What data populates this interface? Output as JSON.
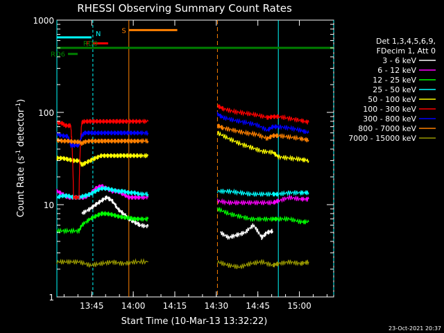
{
  "chart_data": {
    "type": "line",
    "title": "RHESSI Observing Summary Count Rates",
    "xlabel": "Start Time (10-Mar-13 13:32:22)",
    "ylabel_main": "Count Rate (s",
    "ylabel_sup1": "-1",
    "ylabel_mid": " detector",
    "ylabel_sup2": "-1",
    "ylabel_end": ")",
    "x_unit": "minutes after 13:32:22",
    "xlim": [
      0,
      100
    ],
    "ylim": [
      1,
      1000
    ],
    "yscale": "log",
    "x_ticks": [
      {
        "label": "13:45",
        "value": 12.6
      },
      {
        "label": "14:00",
        "value": 27.6
      },
      {
        "label": "14:15",
        "value": 42.6
      },
      {
        "label": "14:30",
        "value": 57.6
      },
      {
        "label": "14:45",
        "value": 72.6
      },
      {
        "label": "15:00",
        "value": 87.6
      }
    ],
    "y_ticks": [
      {
        "label": "1",
        "value": 1
      },
      {
        "label": "10",
        "value": 10
      },
      {
        "label": "100",
        "value": 100
      },
      {
        "label": "1000",
        "value": 1000
      }
    ],
    "legend_header": [
      "Det 1,3,4,5,6,9,",
      "FDecim 1, Att 0"
    ],
    "legend_position": "right",
    "timestamp": "23-Oct-2021 20:37",
    "series": [
      {
        "name": "3 - 6 keV",
        "color": "#ffffff",
        "x": [
          9,
          12,
          14,
          16,
          18,
          20,
          22,
          24,
          26,
          28,
          30,
          33
        ],
        "y": [
          8,
          9,
          10,
          11,
          12,
          11,
          9,
          8,
          7,
          6.5,
          6,
          5.8
        ]
      },
      {
        "name": "6 - 12 keV",
        "color": "#ff00ff",
        "x": [
          0,
          2,
          4,
          6,
          8,
          10,
          12,
          14,
          16,
          18,
          20,
          22,
          24,
          26,
          28,
          30,
          33
        ],
        "y": [
          14,
          13,
          12,
          12,
          12,
          12,
          13,
          15,
          16,
          15,
          14,
          14,
          13,
          12,
          12,
          12,
          12
        ]
      },
      {
        "name": "12 - 25 keV",
        "color": "#00ff00",
        "x": [
          0,
          4,
          8,
          9,
          12,
          14,
          16,
          18,
          20,
          22,
          24,
          26,
          28,
          30,
          33
        ],
        "y": [
          5.2,
          5.2,
          5.2,
          6,
          7,
          7.5,
          8,
          8,
          7.8,
          7.5,
          7.3,
          7.2,
          7,
          7,
          7
        ]
      },
      {
        "name": "25 - 50 keV",
        "color": "#00ffff",
        "x": [
          0,
          2,
          4,
          6,
          8,
          10,
          12,
          14,
          16,
          18,
          20,
          22,
          24,
          26,
          28,
          30,
          33
        ],
        "y": [
          12,
          12.5,
          12.5,
          12,
          12,
          12.5,
          13,
          14,
          15,
          15,
          14.5,
          14,
          14,
          13.5,
          13.5,
          13,
          13
        ]
      },
      {
        "name": "50 - 100 keV",
        "color": "#ffff00",
        "x": [
          0,
          2,
          4,
          6,
          8,
          9,
          10,
          12,
          14,
          16,
          18,
          20,
          22,
          24,
          26,
          28,
          30,
          33
        ],
        "y": [
          32,
          32,
          31,
          30,
          30,
          27,
          28,
          30,
          32,
          34,
          34,
          34,
          34,
          34,
          34,
          34,
          34,
          34
        ]
      },
      {
        "name": "100 - 300 keV",
        "color": "#ff0000",
        "x": [
          0,
          2,
          3,
          5,
          6,
          8,
          9,
          10,
          12,
          14,
          16,
          18,
          20,
          22,
          24,
          26,
          28,
          30,
          33
        ],
        "y": [
          78,
          76,
          72,
          72,
          12,
          12,
          78,
          80,
          80,
          80,
          80,
          80,
          80,
          80,
          80,
          80,
          80,
          80,
          80
        ]
      },
      {
        "name": "300 - 800 keV",
        "color": "#0000ff",
        "x": [
          0,
          2,
          4,
          5,
          6,
          8,
          9,
          10,
          12,
          14,
          16,
          18,
          20,
          22,
          24,
          26,
          28,
          30,
          33
        ],
        "y": [
          58,
          56,
          55,
          44,
          44,
          44,
          56,
          60,
          60,
          60,
          60,
          60,
          60,
          60,
          60,
          60,
          60,
          60,
          60
        ]
      },
      {
        "name": "800 - 7000 keV",
        "color": "#ff8000",
        "x": [
          0,
          2,
          4,
          6,
          8,
          9,
          10,
          12,
          14,
          16,
          18,
          20,
          22,
          24,
          26,
          28,
          30,
          33
        ],
        "y": [
          50,
          49,
          49,
          48,
          48,
          46,
          48,
          49,
          49,
          49,
          49,
          49,
          49,
          49,
          49,
          49,
          49,
          49
        ]
      },
      {
        "name": "7000 - 15000 keV",
        "color": "#999900",
        "x": [
          0,
          4,
          8,
          12,
          16,
          20,
          24,
          28,
          33
        ],
        "y": [
          2.4,
          2.4,
          2.4,
          2.2,
          2.3,
          2.4,
          2.3,
          2.4,
          2.4
        ]
      }
    ],
    "series_b": [
      {
        "name": "3 - 6 keV",
        "x": [
          59,
          62,
          65,
          68,
          71,
          74,
          76,
          78
        ],
        "y": [
          5,
          4.4,
          4.7,
          5,
          6,
          4.4,
          5,
          5.2
        ]
      },
      {
        "name": "6 - 12 keV",
        "x": [
          58,
          62,
          66,
          70,
          74,
          78,
          80,
          84,
          88,
          91
        ],
        "y": [
          11,
          10.5,
          10.5,
          10.5,
          10.5,
          10.5,
          11,
          12,
          11.5,
          11.5
        ]
      },
      {
        "name": "12 - 25 keV",
        "x": [
          58,
          62,
          66,
          70,
          74,
          78,
          80,
          84,
          88,
          91
        ],
        "y": [
          9,
          8,
          7.5,
          7,
          7,
          7,
          7,
          7,
          6.5,
          6.5
        ]
      },
      {
        "name": "25 - 50 keV",
        "x": [
          58,
          62,
          66,
          70,
          74,
          78,
          80,
          84,
          88,
          91
        ],
        "y": [
          14,
          14,
          13.5,
          13,
          13,
          13,
          13,
          13.5,
          13.5,
          13.5
        ]
      },
      {
        "name": "50 - 100 keV",
        "x": [
          58,
          62,
          66,
          70,
          74,
          78,
          80,
          84,
          88,
          91
        ],
        "y": [
          60,
          52,
          46,
          42,
          38,
          37,
          33,
          32,
          31,
          30
        ]
      },
      {
        "name": "100 - 300 keV",
        "x": [
          58,
          60,
          64,
          68,
          72,
          76,
          78,
          80,
          84,
          88,
          91
        ],
        "y": [
          118,
          110,
          102,
          98,
          94,
          88,
          90,
          90,
          86,
          82,
          78
        ]
      },
      {
        "name": "300 - 800 keV",
        "x": [
          58,
          60,
          64,
          68,
          72,
          76,
          78,
          80,
          84,
          88,
          91
        ],
        "y": [
          96,
          88,
          82,
          78,
          74,
          64,
          70,
          70,
          68,
          64,
          60
        ]
      },
      {
        "name": "800 - 7000 keV",
        "x": [
          58,
          60,
          64,
          68,
          72,
          76,
          78,
          80,
          84,
          88,
          91
        ],
        "y": [
          72,
          68,
          64,
          60,
          58,
          52,
          56,
          56,
          54,
          52,
          50
        ]
      },
      {
        "name": "7000 - 15000 keV",
        "x": [
          58,
          62,
          66,
          70,
          74,
          78,
          80,
          84,
          88,
          91
        ],
        "y": [
          2.4,
          2.2,
          2.1,
          2.3,
          2.4,
          2.2,
          2.3,
          2.4,
          2.3,
          2.4
        ]
      }
    ],
    "annotations": [
      {
        "label": "N",
        "color": "#00ffff",
        "x": [
          0,
          12.5
        ],
        "y": 650
      },
      {
        "label": "F",
        "color": "#ff0000",
        "x": [
          13,
          18.5
        ],
        "y": 560
      },
      {
        "label": "S",
        "color": "#ff8000",
        "x": [
          26,
          43.5
        ],
        "y": 780
      },
      {
        "label": "RD0",
        "color": "#008000",
        "x": [
          0,
          100
        ],
        "y": 500
      },
      {
        "label": "RD6",
        "color": "#008000",
        "x": [
          4,
          7.5
        ],
        "y": 430
      }
    ],
    "cyan_markers": [
      0,
      13,
      80,
      100
    ],
    "orange_markers": [
      {
        "x": 26,
        "style": "solid"
      },
      {
        "x": 58,
        "style": "dashed"
      }
    ]
  }
}
